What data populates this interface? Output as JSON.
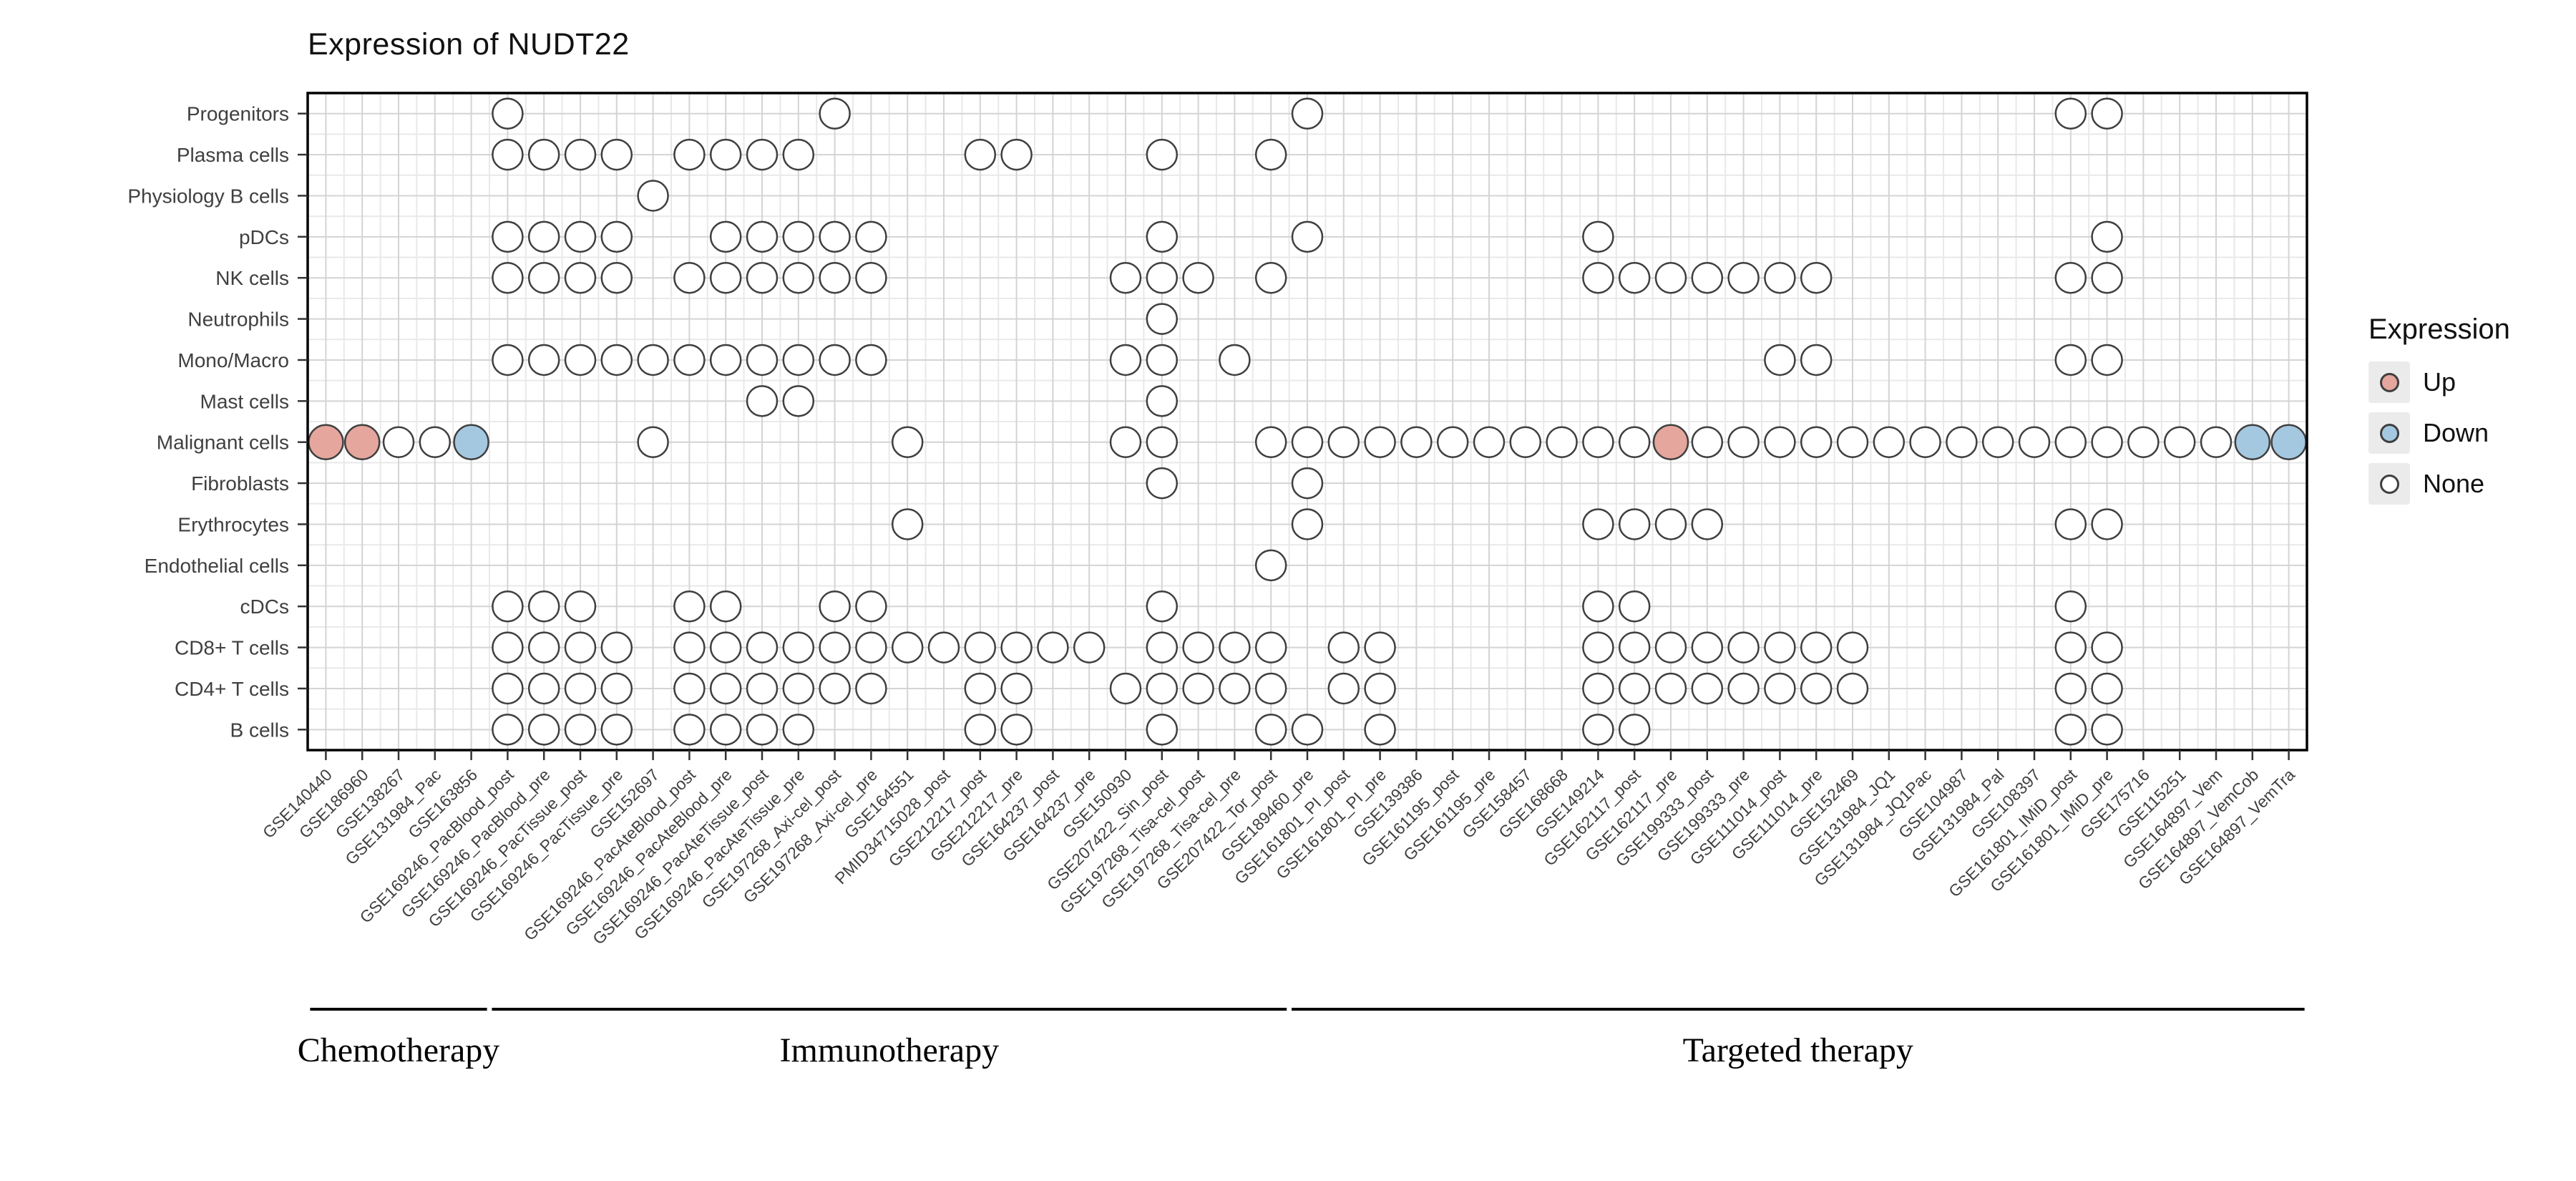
{
  "style": {
    "up_color": "#e5a69d",
    "down_color": "#a5c8e1",
    "none_color": "#ffffff",
    "dot_stroke": "#3f3f3f",
    "grid_major": "#d4d4d4",
    "grid_minor": "#e9e9e9",
    "panel_border": "#000000",
    "axis_text": "#404040",
    "legend_key_bg": "#ebebeb"
  },
  "chart_data": {
    "type": "scatter",
    "title": "Expression of NUDT22",
    "legend": {
      "title": "Expression",
      "items": [
        {
          "label": "Up",
          "color": "#e5a69d"
        },
        {
          "label": "Down",
          "color": "#a5c8e1"
        },
        {
          "label": "None",
          "color": "#ffffff"
        }
      ]
    },
    "rows_top_to_bottom": [
      "Progenitors",
      "Plasma cells",
      "Physiology B cells",
      "pDCs",
      "NK cells",
      "Neutrophils",
      "Mono/Macro",
      "Mast cells",
      "Malignant cells",
      "Fibroblasts",
      "Erythrocytes",
      "Endothelial cells",
      "cDCs",
      "CD8+ T cells",
      "CD4+ T cells",
      "B cells"
    ],
    "columns_left_to_right": [
      "GSE140440",
      "GSE186960",
      "GSE138267",
      "GSE131984_Pac",
      "GSE163856",
      "GSE169246_PacBlood_post",
      "GSE169246_PacBlood_pre",
      "GSE169246_PacTissue_post",
      "GSE169246_PacTissue_pre",
      "GSE152697",
      "GSE169246_PacAteBlood_post",
      "GSE169246_PacAteBlood_pre",
      "GSE169246_PacAteTissue_post",
      "GSE169246_PacAteTissue_pre",
      "GSE197268_Axi-cel_post",
      "GSE197268_Axi-cel_pre",
      "GSE164551",
      "PMID34715028_post",
      "GSE212217_post",
      "GSE212217_pre",
      "GSE164237_post",
      "GSE164237_pre",
      "GSE150930",
      "GSE207422_Sin_post",
      "GSE197268_Tisa-cel_post",
      "GSE197268_Tisa-cel_pre",
      "GSE207422_Tor_post",
      "GSE189460_pre",
      "GSE161801_PI_post",
      "GSE161801_PI_pre",
      "GSE139386",
      "GSE161195_post",
      "GSE161195_pre",
      "GSE158457",
      "GSE168668",
      "GSE149214",
      "GSE162117_post",
      "GSE162117_pre",
      "GSE199333_post",
      "GSE199333_pre",
      "GSE111014_post",
      "GSE111014_pre",
      "GSE152469",
      "GSE131984_JQ1",
      "GSE131984_JQ1Pac",
      "GSE104987",
      "GSE131984_Pal",
      "GSE108397",
      "GSE161801_IMiD_post",
      "GSE161801_IMiD_pre",
      "GSE175716",
      "GSE115251",
      "GSE164897_Vem",
      "GSE164897_VemCob",
      "GSE164897_VemTra"
    ],
    "col_index_base": 1,
    "groups": [
      {
        "label": "Chemotherapy",
        "col_start": 1,
        "col_end": 5
      },
      {
        "label": "Immunotherapy",
        "col_start": 6,
        "col_end": 27
      },
      {
        "label": "Targeted therapy",
        "col_start": 28,
        "col_end": 55
      }
    ],
    "dots": [
      {
        "row": "Progenitors",
        "none": [
          6,
          15,
          28,
          49,
          50
        ]
      },
      {
        "row": "Plasma cells",
        "none": [
          6,
          7,
          8,
          9,
          11,
          12,
          13,
          14,
          19,
          20,
          24,
          27
        ]
      },
      {
        "row": "Physiology B cells",
        "none": [
          10
        ]
      },
      {
        "row": "pDCs",
        "none": [
          6,
          7,
          8,
          9,
          12,
          13,
          14,
          15,
          16,
          24,
          28,
          36,
          50
        ]
      },
      {
        "row": "NK cells",
        "none": [
          6,
          7,
          8,
          9,
          11,
          12,
          13,
          14,
          15,
          16,
          23,
          24,
          25,
          27,
          36,
          37,
          38,
          39,
          40,
          41,
          42,
          49,
          50
        ]
      },
      {
        "row": "Neutrophils",
        "none": [
          24
        ]
      },
      {
        "row": "Mono/Macro",
        "none": [
          6,
          7,
          8,
          9,
          10,
          11,
          12,
          13,
          14,
          15,
          16,
          23,
          24,
          26,
          41,
          42,
          49,
          50
        ]
      },
      {
        "row": "Mast cells",
        "none": [
          13,
          14,
          24
        ]
      },
      {
        "row": "Malignant cells",
        "up": [
          1,
          2,
          38
        ],
        "down": [
          5,
          54,
          55
        ],
        "none": [
          3,
          4,
          10,
          17,
          23,
          24,
          27,
          28,
          29,
          30,
          31,
          32,
          33,
          34,
          35,
          36,
          37,
          39,
          40,
          41,
          42,
          43,
          44,
          45,
          46,
          47,
          48,
          49,
          50,
          51,
          52,
          53
        ]
      },
      {
        "row": "Fibroblasts",
        "none": [
          24,
          28
        ]
      },
      {
        "row": "Erythrocytes",
        "none": [
          17,
          28,
          36,
          37,
          38,
          39,
          49,
          50
        ]
      },
      {
        "row": "Endothelial cells",
        "none": [
          27
        ]
      },
      {
        "row": "cDCs",
        "none": [
          6,
          7,
          8,
          11,
          12,
          15,
          16,
          24,
          36,
          37,
          49
        ]
      },
      {
        "row": "CD8+ T cells",
        "none": [
          6,
          7,
          8,
          9,
          11,
          12,
          13,
          14,
          15,
          16,
          17,
          18,
          19,
          20,
          21,
          22,
          24,
          25,
          26,
          27,
          29,
          30,
          36,
          37,
          38,
          39,
          40,
          41,
          42,
          43,
          49,
          50
        ]
      },
      {
        "row": "CD4+ T cells",
        "none": [
          6,
          7,
          8,
          9,
          11,
          12,
          13,
          14,
          15,
          16,
          19,
          20,
          23,
          24,
          25,
          26,
          27,
          29,
          30,
          36,
          37,
          38,
          39,
          40,
          41,
          42,
          43,
          49,
          50
        ]
      },
      {
        "row": "B cells",
        "none": [
          6,
          7,
          8,
          9,
          11,
          12,
          13,
          14,
          19,
          20,
          24,
          27,
          28,
          30,
          36,
          37,
          49,
          50
        ]
      }
    ]
  }
}
